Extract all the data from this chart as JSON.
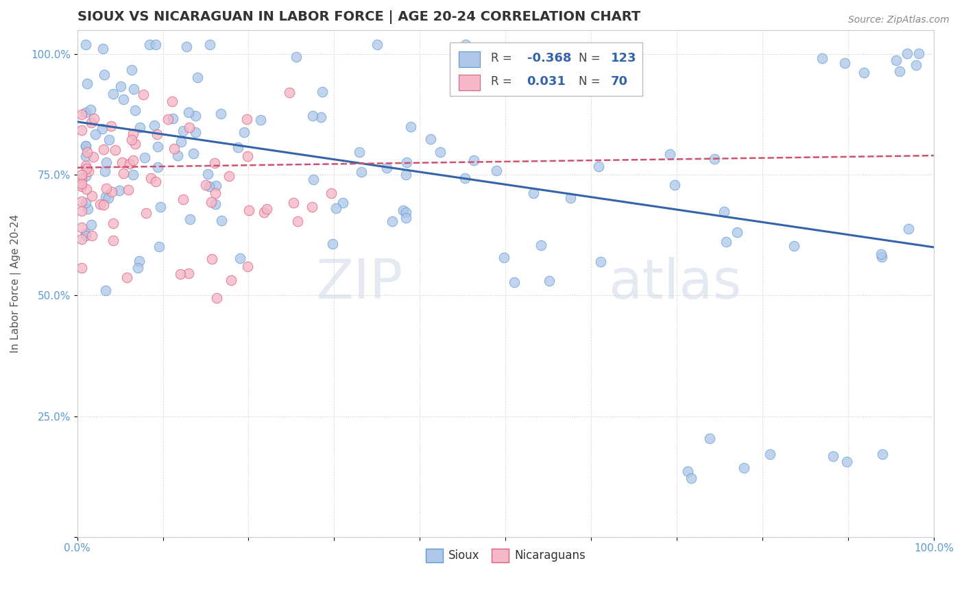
{
  "title": "SIOUX VS NICARAGUAN IN LABOR FORCE | AGE 20-24 CORRELATION CHART",
  "source_text": "Source: ZipAtlas.com",
  "ylabel": "In Labor Force | Age 20-24",
  "xlim": [
    0.0,
    1.0
  ],
  "ylim": [
    0.0,
    1.05
  ],
  "sioux_R": -0.368,
  "sioux_N": 123,
  "nicaraguan_R": 0.031,
  "nicaraguan_N": 70,
  "sioux_color": "#aec6e8",
  "sioux_edge_color": "#5b9bd5",
  "nicaraguan_color": "#f4b8c8",
  "nicaraguan_edge_color": "#e0607a",
  "sioux_line_color": "#3464a8",
  "nicaraguan_line_color": "#d05070",
  "background_color": "#ffffff",
  "grid_color": "#cccccc",
  "legend_box_color_sioux": "#aec6e8",
  "legend_box_color_nicaraguan": "#f4b8c8",
  "sioux_line_y0": 0.86,
  "sioux_line_y1": 0.6,
  "nicaraguan_line_y0": 0.765,
  "nicaraguan_line_y1": 0.79,
  "watermark_zip": "ZIP",
  "watermark_atlas": "atlas"
}
